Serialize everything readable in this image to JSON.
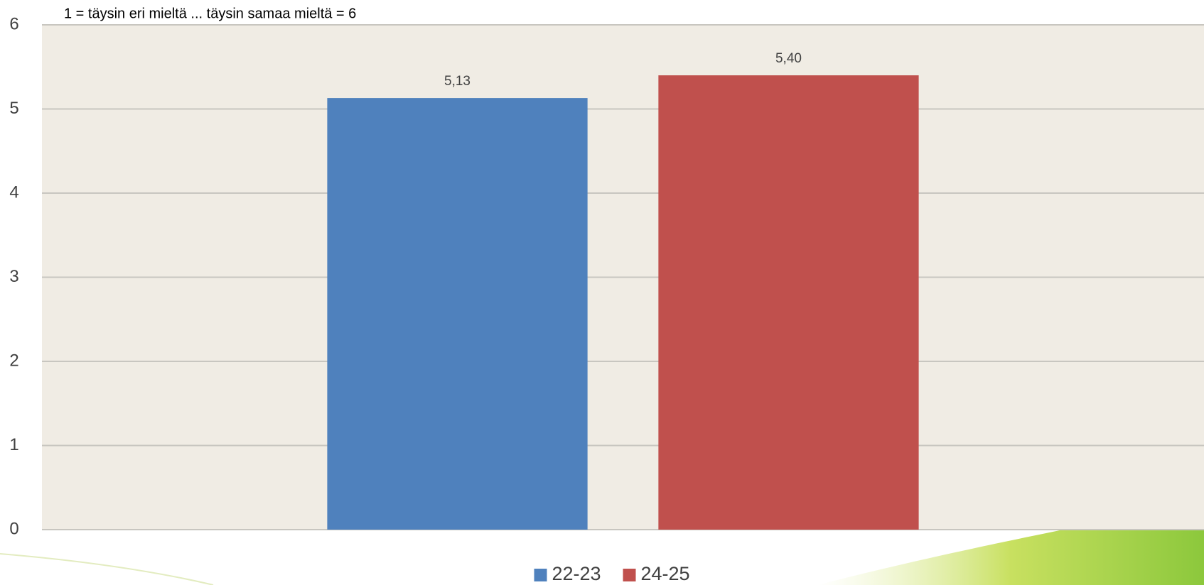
{
  "chart_data": {
    "type": "bar",
    "subtitle": "1 = täysin eri mieltä ... täysin samaa mieltä = 6",
    "categories": [
      null
    ],
    "series": [
      {
        "name": "22-23",
        "color": "#4f81bd",
        "values": [
          5.13
        ],
        "value_labels": [
          "5,13"
        ]
      },
      {
        "name": "24-25",
        "color": "#c0504d",
        "values": [
          5.4
        ],
        "value_labels": [
          "5,40"
        ]
      }
    ],
    "ylim": [
      0,
      6
    ],
    "yticks": [
      0,
      1,
      2,
      3,
      4,
      5,
      6
    ],
    "grid": true,
    "legend": "bottom"
  }
}
